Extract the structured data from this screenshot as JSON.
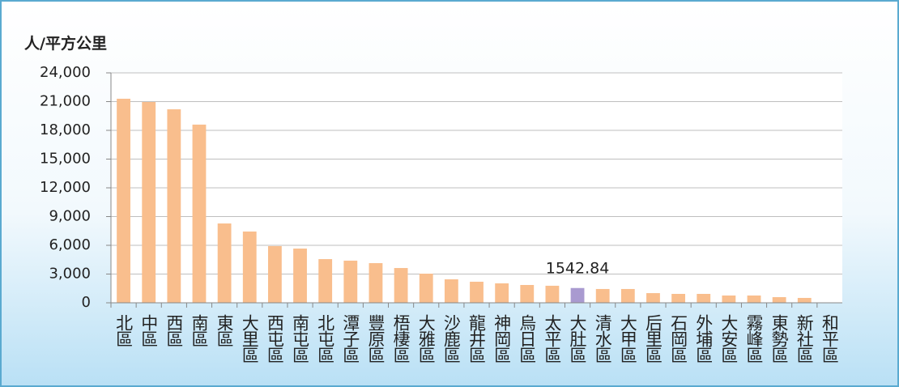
{
  "chart_data": {
    "type": "bar",
    "y_axis_label": "人/平方公里",
    "categories": [
      "北區",
      "中區",
      "西區",
      "南區",
      "東區",
      "大里區",
      "西屯區",
      "南屯區",
      "北屯區",
      "潭子區",
      "豐原區",
      "梧棲區",
      "大雅區",
      "沙鹿區",
      "龍井區",
      "神岡區",
      "烏日區",
      "太平區",
      "大肚區",
      "清水區",
      "大甲區",
      "后里區",
      "石岡區",
      "外埔區",
      "大安區",
      "霧峰區",
      "東勢區",
      "新社區",
      "和平區"
    ],
    "values": [
      21300,
      20960,
      20200,
      18600,
      8280,
      7440,
      5920,
      5660,
      4560,
      4400,
      4140,
      3630,
      3040,
      2450,
      2200,
      2030,
      1860,
      1780,
      1542.84,
      1440,
      1440,
      1010,
      930,
      930,
      760,
      760,
      590,
      510,
      40
    ],
    "value_labels": [
      null,
      null,
      null,
      null,
      null,
      null,
      null,
      null,
      null,
      null,
      null,
      null,
      null,
      null,
      null,
      null,
      null,
      null,
      "1542.84",
      null,
      null,
      null,
      null,
      null,
      null,
      null,
      null,
      null,
      null
    ],
    "colors": [
      "#f9be8d",
      "#f9be8d",
      "#f9be8d",
      "#f9be8d",
      "#f9be8d",
      "#f9be8d",
      "#f9be8d",
      "#f9be8d",
      "#f9be8d",
      "#f9be8d",
      "#f9be8d",
      "#f9be8d",
      "#f9be8d",
      "#f9be8d",
      "#f9be8d",
      "#f9be8d",
      "#f9be8d",
      "#f9be8d",
      "#a99ad0",
      "#f9be8d",
      "#f9be8d",
      "#f9be8d",
      "#f9be8d",
      "#f9be8d",
      "#f9be8d",
      "#f9be8d",
      "#f9be8d",
      "#f9be8d",
      "#f9be8d"
    ],
    "ylim": [
      0,
      24000
    ],
    "yticks": [
      0,
      {
        "value": 3000,
        "label": "3,000"
      },
      {
        "value": 6000,
        "label": "6,000"
      },
      {
        "value": 9000,
        "label": "9,000"
      },
      {
        "value": 12000,
        "label": "12,000"
      },
      {
        "value": 15000,
        "label": "15,000"
      },
      {
        "value": 18000,
        "label": "18,000"
      },
      {
        "value": 21000,
        "label": "21,000"
      },
      {
        "value": 24000,
        "label": "24,000"
      }
    ],
    "grid": true
  }
}
